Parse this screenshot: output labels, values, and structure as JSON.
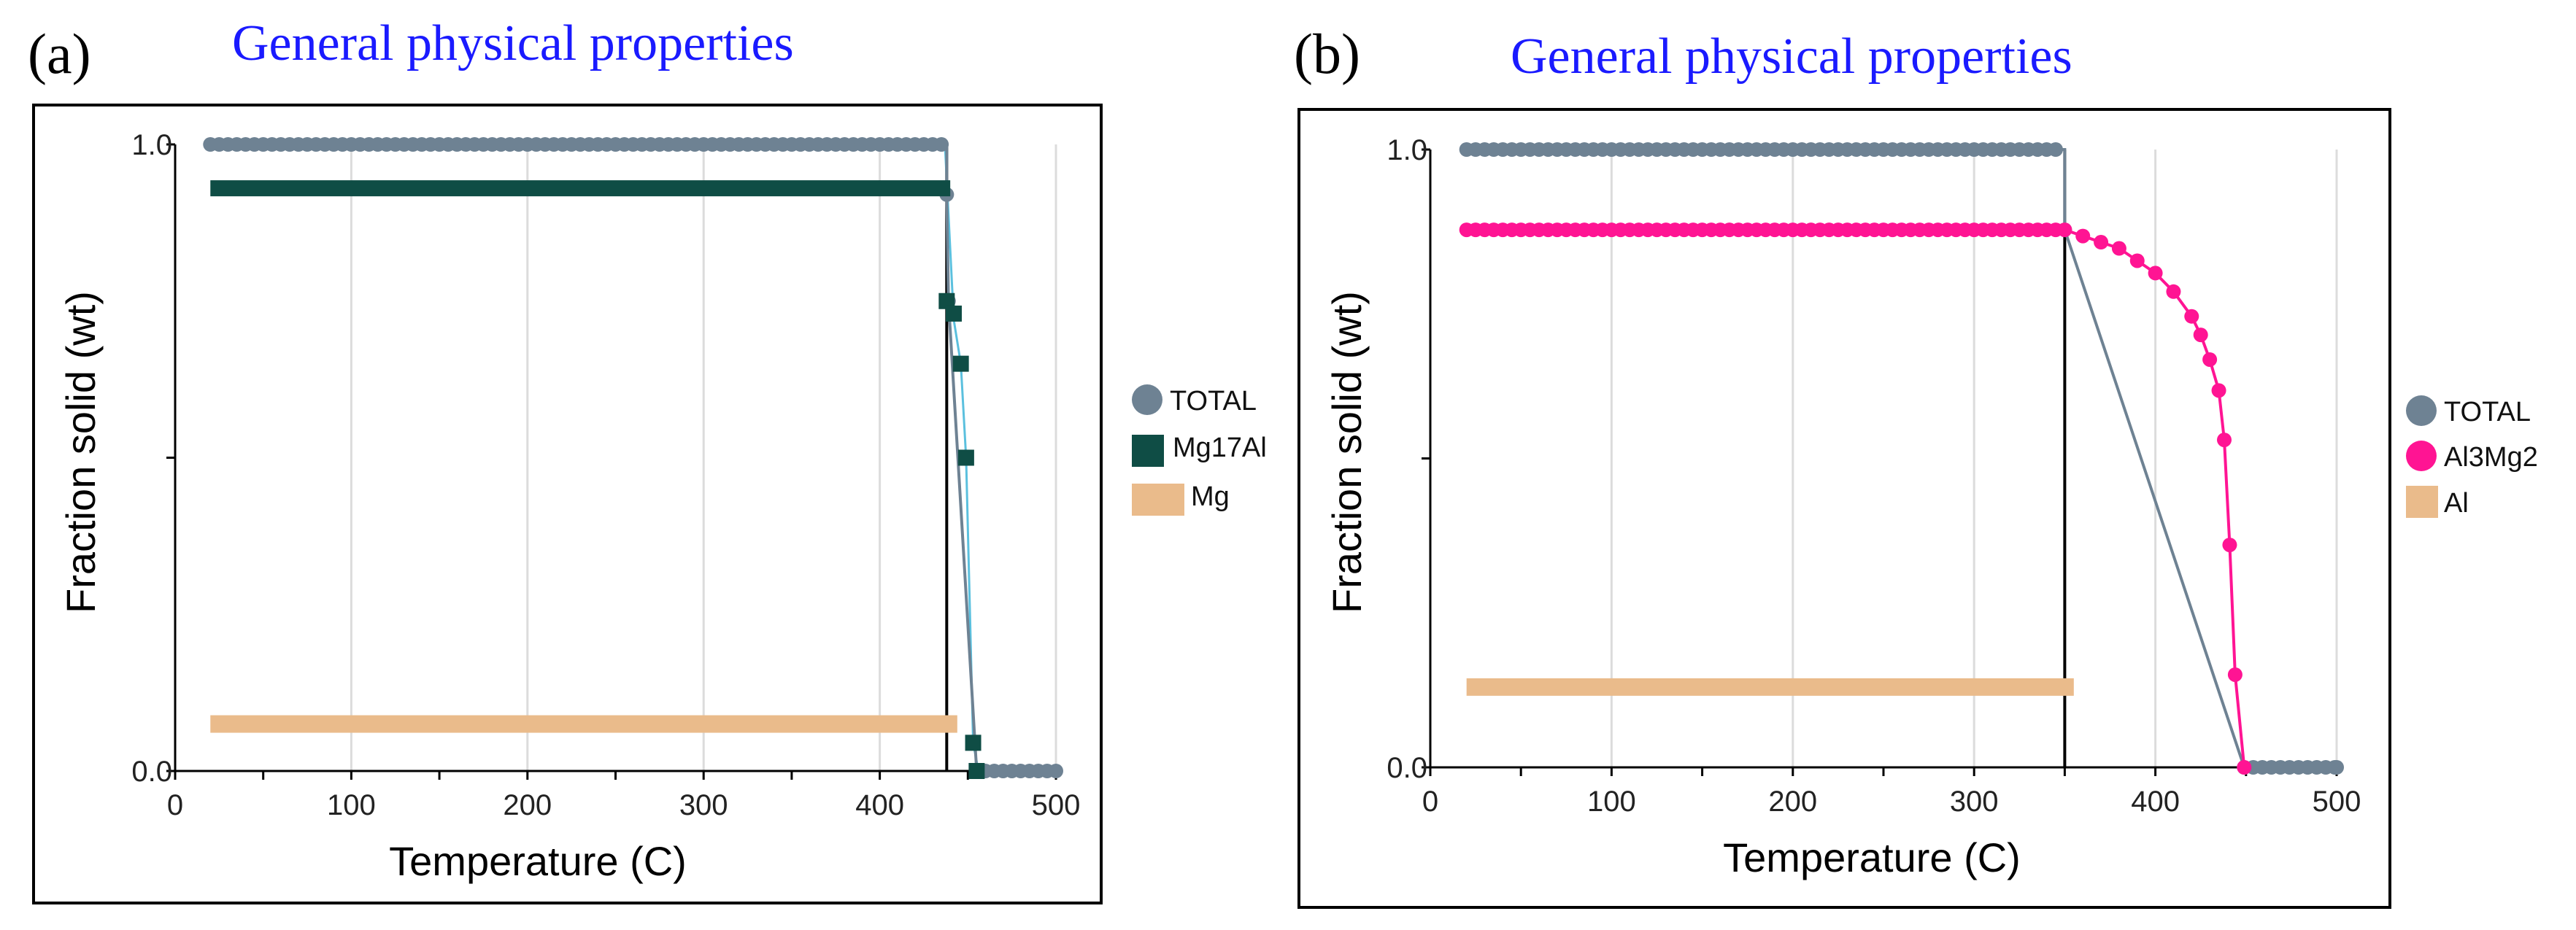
{
  "chart_data": [
    {
      "type": "line",
      "panel_label": "(a)",
      "title": "General physical properties",
      "xlabel": "Temperature (C)",
      "ylabel": "Fraction solid (wt)",
      "xlim": [
        0,
        500
      ],
      "ylim": [
        0.0,
        1.0
      ],
      "x_ticks": [
        "0",
        "100",
        "200",
        "300",
        "400",
        "500"
      ],
      "y_ticks": [
        "0.0",
        "1.0"
      ],
      "grid": "vertical",
      "legend_position": "right",
      "series": [
        {
          "name": "TOTAL",
          "color": "#6e8293",
          "marker": "circle",
          "x": [
            20,
            438,
            438,
            439,
            455,
            500
          ],
          "y": [
            1.0,
            1.0,
            0.92,
            0.75,
            0.0,
            0.0
          ]
        },
        {
          "name": "Mg17Al",
          "color": "#0f4d45",
          "marker": "square",
          "x": [
            20,
            440,
            438,
            442,
            446,
            449,
            453,
            455
          ],
          "y": [
            0.93,
            0.93,
            0.75,
            0.73,
            0.65,
            0.5,
            0.045,
            0.0
          ]
        },
        {
          "name": "Mg",
          "color": "#eabb8b",
          "marker": "square",
          "x": [
            20,
            444
          ],
          "y": [
            0.075,
            0.075
          ]
        }
      ],
      "vertical_line_x": 438,
      "liquid_line": {
        "color": "#5bc0de",
        "x": [
          437,
          442,
          446,
          449,
          453,
          456
        ],
        "y": [
          1.0,
          0.72,
          0.65,
          0.5,
          0.045,
          0.0
        ]
      }
    },
    {
      "type": "line",
      "panel_label": "(b)",
      "title": "General physical properties",
      "xlabel": "Temperature (C)",
      "ylabel": "Fraction solid (wt)",
      "xlim": [
        0,
        500
      ],
      "ylim": [
        0.0,
        1.0
      ],
      "x_ticks": [
        "0",
        "100",
        "200",
        "300",
        "400",
        "500"
      ],
      "y_ticks": [
        "0.0",
        "1.0"
      ],
      "grid": "vertical",
      "legend_position": "right",
      "series": [
        {
          "name": "TOTAL",
          "color": "#6e8293",
          "marker": "circle",
          "x": [
            20,
            350,
            350,
            449,
            500
          ],
          "y": [
            1.0,
            1.0,
            0.87,
            0.0,
            0.0
          ]
        },
        {
          "name": "Al3Mg2",
          "color": "#ff1493",
          "marker": "circle",
          "x": [
            20,
            350,
            360,
            370,
            380,
            390,
            400,
            410,
            420,
            425,
            430,
            435,
            438,
            441,
            444,
            449
          ],
          "y": [
            0.87,
            0.87,
            0.86,
            0.85,
            0.84,
            0.82,
            0.8,
            0.77,
            0.73,
            0.7,
            0.66,
            0.61,
            0.53,
            0.36,
            0.15,
            0.0
          ]
        },
        {
          "name": "Al",
          "color": "#eabb8b",
          "marker": "square",
          "x": [
            20,
            355
          ],
          "y": [
            0.13,
            0.13
          ]
        }
      ],
      "vertical_line_x": 350
    }
  ]
}
